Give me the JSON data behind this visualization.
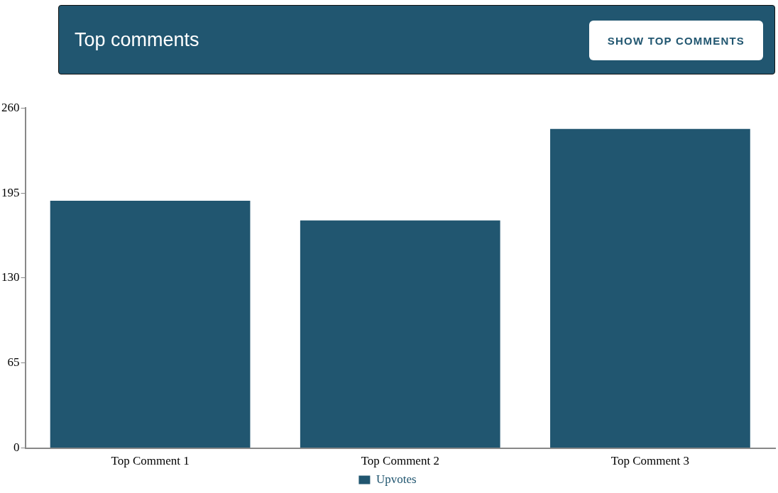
{
  "chart_data": {
    "type": "bar",
    "title": "Top comments",
    "annotations": [
      "SHOW TOP COMMENTS"
    ],
    "categories": [
      "Top Comment 1",
      "Top Comment 2",
      "Top Comment 3"
    ],
    "series": [
      {
        "name": "Upvotes",
        "color": "#215670",
        "values": [
          189,
          174,
          244
        ]
      }
    ],
    "ylim": [
      0,
      260
    ],
    "yticks": [
      0,
      65,
      130,
      195,
      260
    ],
    "grid": false,
    "legend": "bottom"
  }
}
